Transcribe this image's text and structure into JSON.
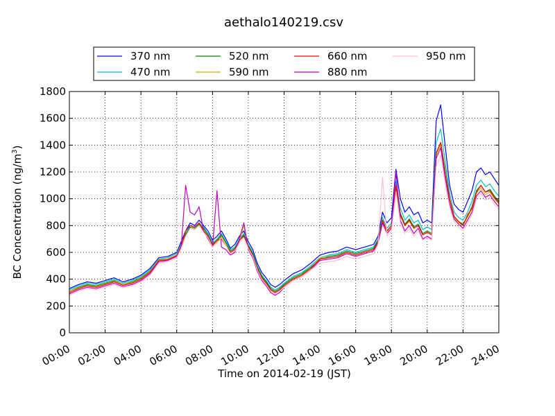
{
  "chart_data": {
    "type": "line",
    "title": "aethalo140219.csv",
    "xlabel": "Time on 2014-02-19 (JST)",
    "ylabel_main": "BC Concentration (ng/m",
    "ylabel_sup": "3",
    "ylabel_close": ")",
    "xlim_hours": [
      0,
      24
    ],
    "ylim": [
      0,
      1800
    ],
    "grid": true,
    "legend_position": "top",
    "x_tick_labels": [
      "00:00",
      "02:00",
      "04:00",
      "06:00",
      "08:00",
      "10:00",
      "12:00",
      "14:00",
      "16:00",
      "18:00",
      "20:00",
      "22:00",
      "24:00"
    ],
    "y_tick_labels": [
      "0",
      "200",
      "400",
      "600",
      "800",
      "1000",
      "1200",
      "1400",
      "1600",
      "1800"
    ],
    "x_hours": [
      0,
      0.5,
      1,
      1.5,
      2,
      2.5,
      3,
      3.5,
      4,
      4.5,
      5,
      5.5,
      6,
      6.25,
      6.5,
      6.75,
      7,
      7.25,
      7.5,
      7.75,
      8,
      8.25,
      8.5,
      8.75,
      9,
      9.25,
      9.5,
      9.75,
      10,
      10.25,
      10.5,
      10.75,
      11,
      11.25,
      11.5,
      11.75,
      12,
      12.5,
      13,
      13.5,
      14,
      14.5,
      15,
      15.5,
      16,
      16.5,
      17,
      17.25,
      17.5,
      17.75,
      18,
      18.25,
      18.5,
      18.75,
      19,
      19.25,
      19.5,
      19.75,
      20,
      20.25,
      20.5,
      20.75,
      21,
      21.25,
      21.5,
      21.75,
      22,
      22.25,
      22.5,
      22.75,
      23,
      23.25,
      23.5,
      23.75,
      24
    ],
    "series": [
      {
        "name": "370 nm",
        "color": "#0000ff",
        "values": [
          330,
          360,
          380,
          370,
          390,
          410,
          380,
          400,
          430,
          480,
          560,
          570,
          600,
          680,
          760,
          820,
          800,
          840,
          800,
          760,
          690,
          720,
          760,
          700,
          630,
          660,
          720,
          760,
          680,
          620,
          520,
          450,
          410,
          360,
          340,
          360,
          390,
          440,
          470,
          520,
          580,
          600,
          610,
          640,
          620,
          640,
          660,
          720,
          900,
          820,
          860,
          1220,
          1000,
          900,
          940,
          880,
          900,
          820,
          840,
          820,
          1580,
          1700,
          1400,
          1100,
          960,
          920,
          900,
          980,
          1060,
          1200,
          1230,
          1180,
          1200,
          1150,
          1100
        ]
      },
      {
        "name": "470 nm",
        "color": "#00bfbf",
        "values": [
          320,
          350,
          370,
          360,
          380,
          400,
          370,
          390,
          420,
          470,
          550,
          560,
          590,
          660,
          740,
          800,
          790,
          820,
          790,
          740,
          670,
          700,
          740,
          680,
          620,
          640,
          700,
          740,
          660,
          600,
          500,
          430,
          390,
          340,
          320,
          340,
          370,
          420,
          450,
          500,
          560,
          580,
          590,
          620,
          600,
          620,
          640,
          700,
          860,
          780,
          820,
          1130,
          930,
          840,
          880,
          820,
          840,
          770,
          790,
          770,
          1420,
          1520,
          1280,
          1040,
          900,
          860,
          840,
          900,
          980,
          1100,
          1140,
          1090,
          1110,
          1060,
          1020
        ]
      },
      {
        "name": "520 nm",
        "color": "#008000",
        "values": [
          310,
          340,
          360,
          350,
          370,
          390,
          360,
          380,
          410,
          460,
          540,
          550,
          580,
          650,
          730,
          790,
          780,
          810,
          780,
          730,
          660,
          690,
          730,
          670,
          610,
          630,
          690,
          730,
          650,
          590,
          490,
          420,
          380,
          330,
          310,
          330,
          360,
          410,
          440,
          490,
          550,
          570,
          580,
          610,
          590,
          610,
          630,
          690,
          840,
          760,
          800,
          1080,
          890,
          810,
          850,
          790,
          810,
          740,
          760,
          740,
          1340,
          1420,
          1220,
          1000,
          870,
          830,
          810,
          870,
          940,
          1060,
          1100,
          1050,
          1070,
          1020,
          980
        ]
      },
      {
        "name": "590 nm",
        "color": "#bfbf00",
        "values": [
          310,
          335,
          355,
          345,
          365,
          385,
          360,
          375,
          405,
          455,
          545,
          550,
          580,
          650,
          720,
          780,
          770,
          800,
          770,
          720,
          650,
          680,
          720,
          660,
          600,
          620,
          680,
          800,
          640,
          580,
          480,
          410,
          370,
          320,
          300,
          320,
          350,
          400,
          430,
          480,
          560,
          560,
          570,
          600,
          580,
          600,
          620,
          680,
          830,
          750,
          790,
          1060,
          870,
          800,
          830,
          780,
          800,
          730,
          750,
          730,
          1320,
          1400,
          1200,
          980,
          860,
          820,
          800,
          860,
          920,
          1040,
          1080,
          1030,
          1050,
          1000,
          960
        ]
      },
      {
        "name": "660 nm",
        "color": "#ff0000",
        "values": [
          300,
          330,
          350,
          340,
          360,
          380,
          355,
          370,
          400,
          450,
          540,
          545,
          575,
          645,
          760,
          800,
          790,
          820,
          760,
          720,
          650,
          690,
          700,
          650,
          600,
          620,
          690,
          720,
          640,
          580,
          480,
          410,
          370,
          320,
          300,
          320,
          350,
          400,
          430,
          480,
          550,
          560,
          570,
          600,
          580,
          600,
          620,
          680,
          840,
          760,
          800,
          1100,
          880,
          800,
          840,
          780,
          800,
          730,
          750,
          730,
          1340,
          1420,
          1180,
          1000,
          870,
          830,
          800,
          880,
          930,
          1050,
          1100,
          1050,
          1060,
          1010,
          970
        ]
      },
      {
        "name": "880 nm",
        "color": "#bf00bf",
        "values": [
          290,
          320,
          340,
          330,
          350,
          370,
          345,
          360,
          390,
          440,
          530,
          540,
          570,
          640,
          1100,
          900,
          880,
          940,
          760,
          700,
          640,
          1060,
          640,
          620,
          580,
          600,
          700,
          820,
          620,
          560,
          460,
          390,
          350,
          300,
          280,
          300,
          340,
          390,
          420,
          470,
          540,
          550,
          560,
          590,
          570,
          590,
          610,
          670,
          820,
          740,
          780,
          1200,
          840,
          760,
          800,
          740,
          780,
          700,
          720,
          700,
          1300,
          1380,
          1160,
          960,
          850,
          810,
          780,
          840,
          900,
          1020,
          1060,
          1010,
          1030,
          980,
          940
        ]
      },
      {
        "name": "950 nm",
        "color": "#ffc0cb",
        "values": [
          280,
          310,
          330,
          320,
          340,
          360,
          335,
          350,
          380,
          430,
          520,
          530,
          560,
          630,
          720,
          780,
          770,
          800,
          750,
          710,
          640,
          670,
          710,
          650,
          590,
          610,
          670,
          710,
          630,
          570,
          470,
          400,
          360,
          310,
          290,
          310,
          340,
          390,
          420,
          470,
          520,
          530,
          540,
          570,
          550,
          570,
          590,
          660,
          1160,
          720,
          760,
          1050,
          820,
          740,
          780,
          720,
          760,
          690,
          710,
          690,
          1240,
          1320,
          1120,
          940,
          830,
          790,
          760,
          820,
          880,
          1000,
          1040,
          990,
          1010,
          960,
          920
        ]
      }
    ]
  }
}
